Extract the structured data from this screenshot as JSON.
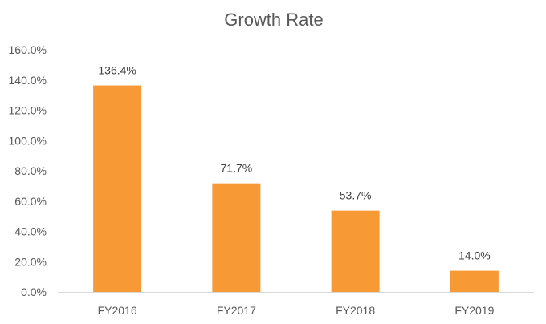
{
  "chart_data": {
    "type": "bar",
    "title": "Growth Rate",
    "xlabel": "",
    "ylabel": "",
    "categories": [
      "FY2016",
      "FY2017",
      "FY2018",
      "FY2019"
    ],
    "values": [
      136.4,
      71.7,
      53.7,
      14.0
    ],
    "data_labels": [
      "136.4%",
      "71.7%",
      "53.7%",
      "14.0%"
    ],
    "ylim": [
      0,
      160
    ],
    "yticks": [
      0,
      20,
      40,
      60,
      80,
      100,
      120,
      140,
      160
    ],
    "ytick_labels": [
      "0.0%",
      "20.0%",
      "40.0%",
      "60.0%",
      "80.0%",
      "100.0%",
      "120.0%",
      "140.0%",
      "160.0%"
    ],
    "grid": false,
    "legend": "none",
    "bar_color": "#F79A36",
    "axis_color": "#D9D9D9"
  }
}
